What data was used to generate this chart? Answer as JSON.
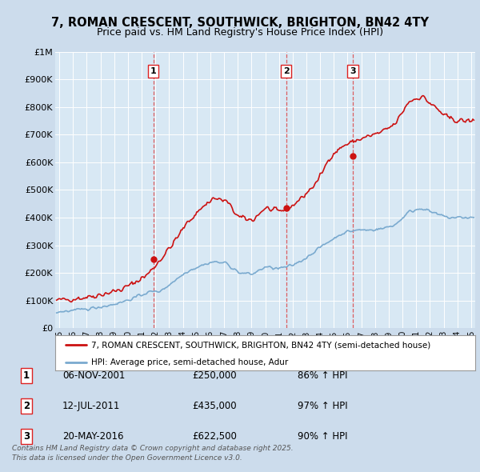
{
  "title": "7, ROMAN CRESCENT, SOUTHWICK, BRIGHTON, BN42 4TY",
  "subtitle": "Price paid vs. HM Land Registry's House Price Index (HPI)",
  "background_color": "#ccdcec",
  "plot_bg_color": "#d8e8f4",
  "legend_label_red": "7, ROMAN CRESCENT, SOUTHWICK, BRIGHTON, BN42 4TY (semi-detached house)",
  "legend_label_blue": "HPI: Average price, semi-detached house, Adur",
  "footnote": "Contains HM Land Registry data © Crown copyright and database right 2025.\nThis data is licensed under the Open Government Licence v3.0.",
  "sale_points": [
    {
      "num": 1,
      "date": "06-NOV-2001",
      "price": 250000,
      "hpi_pct": "86% ↑ HPI",
      "year": 2001.85
    },
    {
      "num": 2,
      "date": "12-JUL-2011",
      "price": 435000,
      "hpi_pct": "97% ↑ HPI",
      "year": 2011.53
    },
    {
      "num": 3,
      "date": "20-MAY-2016",
      "price": 622500,
      "hpi_pct": "90% ↑ HPI",
      "year": 2016.38
    }
  ],
  "ylim": [
    0,
    1000000
  ],
  "xlim": [
    1994.7,
    2025.3
  ],
  "ytick_labels": [
    "£0",
    "£100K",
    "£200K",
    "£300K",
    "£400K",
    "£500K",
    "£600K",
    "£700K",
    "£800K",
    "£900K",
    "£1M"
  ],
  "ytick_values": [
    0,
    100000,
    200000,
    300000,
    400000,
    500000,
    600000,
    700000,
    800000,
    900000,
    1000000
  ],
  "xticks": [
    1995,
    1996,
    1997,
    1998,
    1999,
    2000,
    2001,
    2002,
    2003,
    2004,
    2005,
    2006,
    2007,
    2008,
    2009,
    2010,
    2011,
    2012,
    2013,
    2014,
    2015,
    2016,
    2017,
    2018,
    2019,
    2020,
    2021,
    2022,
    2023,
    2024,
    2025
  ],
  "vline_color": "#dd2222",
  "red_line_color": "#cc1111",
  "blue_line_color": "#7aaacf"
}
